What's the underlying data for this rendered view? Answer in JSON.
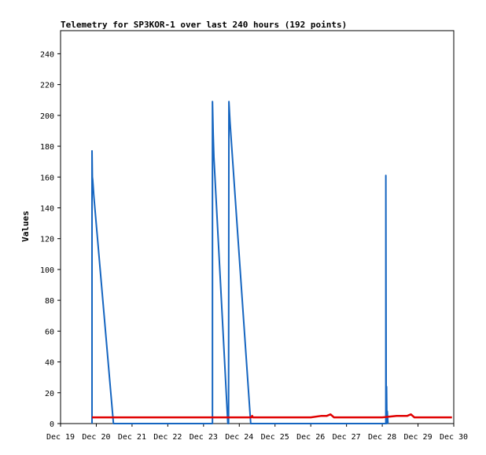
{
  "chart_data": {
    "type": "line",
    "title": "Telemetry for SP3KOR-1 over last 240 hours (192 points)",
    "xlabel": "",
    "ylabel": "Values",
    "ylim": [
      0,
      255
    ],
    "xlim": [
      0,
      11
    ],
    "yticks": [
      0,
      20,
      40,
      60,
      80,
      100,
      120,
      140,
      160,
      180,
      200,
      220,
      240
    ],
    "xtick_labels": [
      "Dec 19",
      "Dec 20",
      "Dec 21",
      "Dec 22",
      "Dec 23",
      "Dec 24",
      "Dec 25",
      "Dec 26",
      "Dec 27",
      "Dec 28",
      "Dec 29",
      "Dec 30"
    ],
    "grid": false,
    "series": [
      {
        "color": "#1565C0",
        "points": [
          [
            0.88,
            0
          ],
          [
            0.88,
            177
          ],
          [
            0.89,
            160
          ],
          [
            0.9,
            158
          ],
          [
            0.93,
            148
          ],
          [
            1.48,
            0
          ],
          [
            4.25,
            0
          ],
          [
            4.25,
            209
          ],
          [
            4.27,
            188
          ],
          [
            4.29,
            173
          ],
          [
            4.68,
            0
          ],
          [
            4.7,
            0
          ],
          [
            4.71,
            209
          ],
          [
            4.74,
            196
          ],
          [
            5.32,
            0
          ],
          [
            9.1,
            0
          ],
          [
            9.1,
            161
          ],
          [
            9.11,
            0
          ],
          [
            9.12,
            24
          ],
          [
            9.13,
            0
          ],
          [
            9.14,
            8
          ],
          [
            9.16,
            0
          ]
        ]
      },
      {
        "color": "#E00000",
        "points": [
          [
            0.88,
            4
          ],
          [
            5.34,
            4
          ],
          [
            5.36,
            5
          ],
          [
            5.38,
            4
          ],
          [
            7.0,
            4
          ],
          [
            7.3,
            5
          ],
          [
            7.45,
            5
          ],
          [
            7.55,
            6
          ],
          [
            7.65,
            4
          ],
          [
            9.0,
            4
          ],
          [
            9.4,
            5
          ],
          [
            9.7,
            5
          ],
          [
            9.8,
            6
          ],
          [
            9.9,
            4
          ],
          [
            10.95,
            4
          ]
        ]
      }
    ]
  }
}
